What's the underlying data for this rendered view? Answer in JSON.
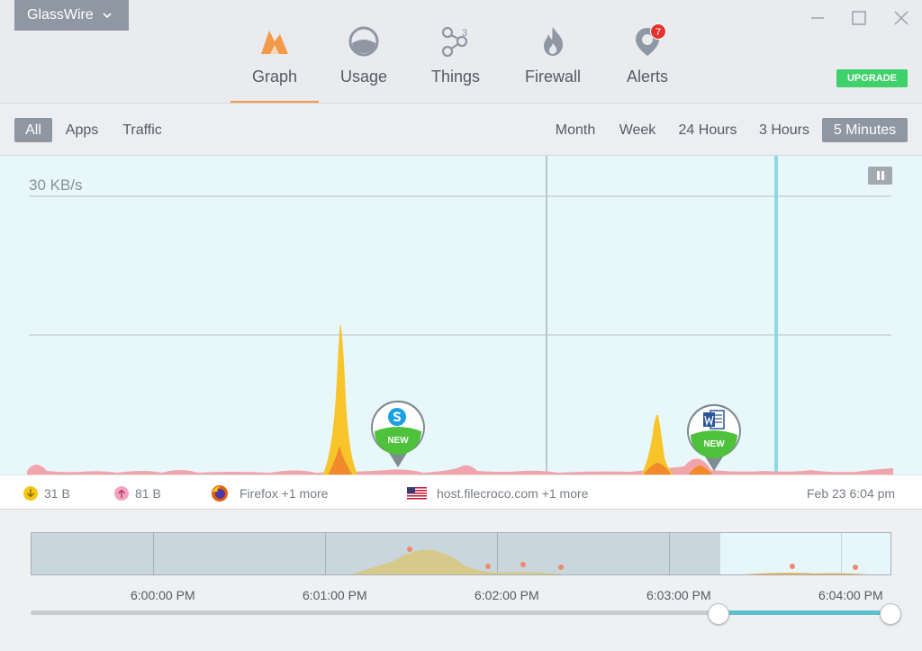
{
  "app": {
    "name": "GlassWire"
  },
  "nav": {
    "tabs": [
      {
        "label": "Graph",
        "icon": "graph-icon",
        "active": true
      },
      {
        "label": "Usage",
        "icon": "usage-icon"
      },
      {
        "label": "Things",
        "icon": "things-icon",
        "count": "3"
      },
      {
        "label": "Firewall",
        "icon": "firewall-icon"
      },
      {
        "label": "Alerts",
        "icon": "alerts-icon",
        "badge": "7"
      }
    ],
    "upgrade_label": "UPGRADE"
  },
  "filters": {
    "views": [
      {
        "label": "All",
        "selected": true
      },
      {
        "label": "Apps"
      },
      {
        "label": "Traffic"
      }
    ],
    "ranges": [
      {
        "label": "Month"
      },
      {
        "label": "Week"
      },
      {
        "label": "24 Hours"
      },
      {
        "label": "3 Hours"
      },
      {
        "label": "5 Minutes",
        "selected": true
      }
    ]
  },
  "graph": {
    "scale_label": "30 KB/s",
    "pins": [
      {
        "app_icon": "skype-icon",
        "badge": "NEW"
      },
      {
        "app_icon": "word-icon",
        "badge": "NEW"
      }
    ]
  },
  "info": {
    "download": "31 B",
    "upload": "81 B",
    "apps": "Firefox +1 more",
    "host": "host.filecroco.com +1 more",
    "date": "Feb 23 6:04 pm"
  },
  "timeline": {
    "times": [
      "6:00:00 PM",
      "6:01:00 PM",
      "6:02:00 PM",
      "6:03:00 PM",
      "6:04:00 PM"
    ]
  },
  "colors": {
    "accent": "#f39a4a",
    "upgrade": "#3fd16a",
    "selected_range": "#5bc0cc",
    "download": "#f5c518",
    "upload": "#f3a3c0"
  }
}
